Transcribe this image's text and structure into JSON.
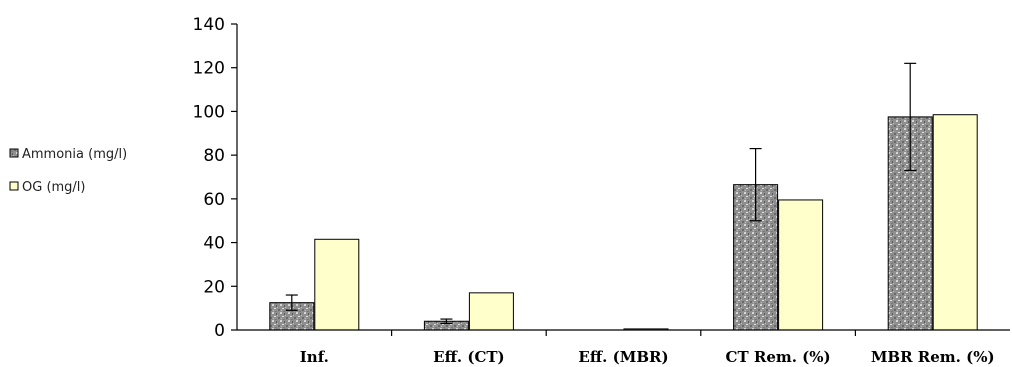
{
  "chart_data": {
    "type": "bar",
    "title": "",
    "xlabel": "",
    "ylabel": "",
    "ylim": [
      0,
      140
    ],
    "yticks": [
      0,
      20,
      40,
      60,
      80,
      100,
      120,
      140
    ],
    "ytick_labels": [
      "0",
      "20",
      "40",
      "60",
      "80",
      "100",
      "120",
      "140"
    ],
    "categories": [
      "Inf.",
      "Eff. (CT)",
      "Eff. (MBR)",
      "CT Rem. (%)",
      "MBR Rem. (%)"
    ],
    "series": [
      {
        "name": "Ammonia (mg/l)",
        "values": [
          12.5,
          4,
          0,
          66.5,
          97.5
        ],
        "error": [
          3.5,
          1,
          0,
          16.5,
          24.5
        ],
        "color": "#9a9a9a",
        "pattern": "speckled-gray"
      },
      {
        "name": "OG (mg/l)",
        "values": [
          41.5,
          17,
          0.5,
          59.5,
          98.5
        ],
        "color": "#ffffcc"
      }
    ],
    "legend_position": "left",
    "grid": false
  }
}
